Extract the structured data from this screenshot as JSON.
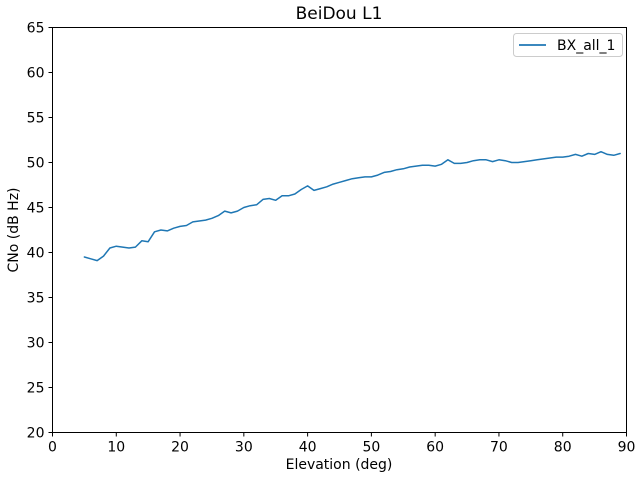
{
  "chart_data": {
    "type": "line",
    "title": "BeiDou L1",
    "xlabel": "Elevation (deg)",
    "ylabel": "CNo (dB Hz)",
    "xlim": [
      0,
      90
    ],
    "ylim": [
      20,
      65
    ],
    "xticks": [
      0,
      10,
      20,
      30,
      40,
      50,
      60,
      70,
      80,
      90
    ],
    "yticks": [
      20,
      25,
      30,
      35,
      40,
      45,
      50,
      55,
      60,
      65
    ],
    "grid": false,
    "legend": {
      "position": "upper-right",
      "entries": [
        {
          "label": "BX_all_1",
          "color": "#1f77b4"
        }
      ]
    },
    "series": [
      {
        "name": "BX_all_1",
        "color": "#1f77b4",
        "line_width": 1.5,
        "x": [
          5,
          6,
          7,
          8,
          9,
          10,
          11,
          12,
          13,
          14,
          15,
          16,
          17,
          18,
          19,
          20,
          21,
          22,
          23,
          24,
          25,
          26,
          27,
          28,
          29,
          30,
          31,
          32,
          33,
          34,
          35,
          36,
          37,
          38,
          39,
          40,
          41,
          42,
          43,
          44,
          45,
          46,
          47,
          48,
          49,
          50,
          51,
          52,
          53,
          54,
          55,
          56,
          57,
          58,
          59,
          60,
          61,
          62,
          63,
          64,
          65,
          66,
          67,
          68,
          69,
          70,
          71,
          72,
          73,
          74,
          75,
          76,
          77,
          78,
          79,
          80,
          81,
          82,
          83,
          84,
          85,
          86,
          87,
          88,
          89
        ],
        "y": [
          39.5,
          39.3,
          39.1,
          39.6,
          40.5,
          40.7,
          40.6,
          40.5,
          40.6,
          41.3,
          41.2,
          42.3,
          42.5,
          42.4,
          42.7,
          42.9,
          43.0,
          43.4,
          43.5,
          43.6,
          43.8,
          44.1,
          44.6,
          44.4,
          44.6,
          45.0,
          45.2,
          45.3,
          45.9,
          46.0,
          45.8,
          46.3,
          46.3,
          46.5,
          47.0,
          47.4,
          46.9,
          47.1,
          47.3,
          47.6,
          47.8,
          48.0,
          48.2,
          48.3,
          48.4,
          48.4,
          48.6,
          48.9,
          49.0,
          49.2,
          49.3,
          49.5,
          49.6,
          49.7,
          49.7,
          49.6,
          49.8,
          50.3,
          49.9,
          49.9,
          50.0,
          50.2,
          50.3,
          50.3,
          50.1,
          50.3,
          50.2,
          50.0,
          50.0,
          50.1,
          50.2,
          50.3,
          50.4,
          50.5,
          50.6,
          50.6,
          50.7,
          50.9,
          50.7,
          51.0,
          50.9,
          51.2,
          50.9,
          50.8,
          51.0
        ]
      }
    ],
    "axis_color": "#000000",
    "background_color": "#ffffff"
  }
}
